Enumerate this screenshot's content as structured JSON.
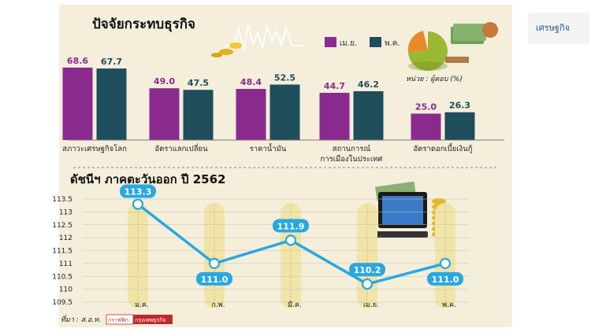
{
  "page": {
    "sidebar_label": "เศรษฐกิจ",
    "source_label": "ที่มา : ส.อ.ท.",
    "credit_label_1": "กราฟฟิก",
    "credit_label_2": "กรุงเทพธุรกิจ"
  },
  "chart_data": [
    {
      "type": "bar",
      "title": "ปัจจัยกระทบธุรกิจ",
      "unit_label": "หน่วย : ผู้ตอบ (%)",
      "categories": [
        "สภาวะเศรษฐกิจโลก",
        "อัตราแลกเปลี่ยน",
        "ราคาน้ำมัน",
        "สถานการณ์การเมืองในประเทศ",
        "อัตราดอกเบี้ยเงินกู้"
      ],
      "category_lines": [
        [
          "สภาวะเศรษฐกิจโลก"
        ],
        [
          "อัตราแลกเปลี่ยน"
        ],
        [
          "ราคาน้ำมัน"
        ],
        [
          "สถานการณ์",
          "การเมืองในประเทศ"
        ],
        [
          "อัตราดอกเบี้ยเงินกู้"
        ]
      ],
      "series": [
        {
          "name": "เม.ย.",
          "color": "#8b2a8e",
          "values": [
            68.6,
            49.0,
            48.4,
            44.7,
            25.0
          ]
        },
        {
          "name": "พ.ค.",
          "color": "#1e4d5c",
          "values": [
            67.7,
            47.5,
            52.5,
            46.2,
            26.3
          ]
        }
      ],
      "ylim": [
        0,
        70
      ],
      "legend": "top-right"
    },
    {
      "type": "line",
      "title": "ดัชนีฯ ภาคตะวันออก ปี 2562",
      "categories": [
        "ม.ค.",
        "ก.พ.",
        "มี.ค.",
        "เม.ย.",
        "พ.ค."
      ],
      "values": [
        113.3,
        111.0,
        111.9,
        110.2,
        111.0
      ],
      "value_labels": [
        "113.3",
        "111.0",
        "111.9",
        "110.2",
        "111.0"
      ],
      "yticks": [
        "113.5",
        "113",
        "112.5",
        "112",
        "111.5",
        "111",
        "110.5",
        "110",
        "109.5"
      ],
      "ylim": [
        109.5,
        113.5
      ],
      "line_color": "#29a7e1",
      "grid": true
    }
  ]
}
